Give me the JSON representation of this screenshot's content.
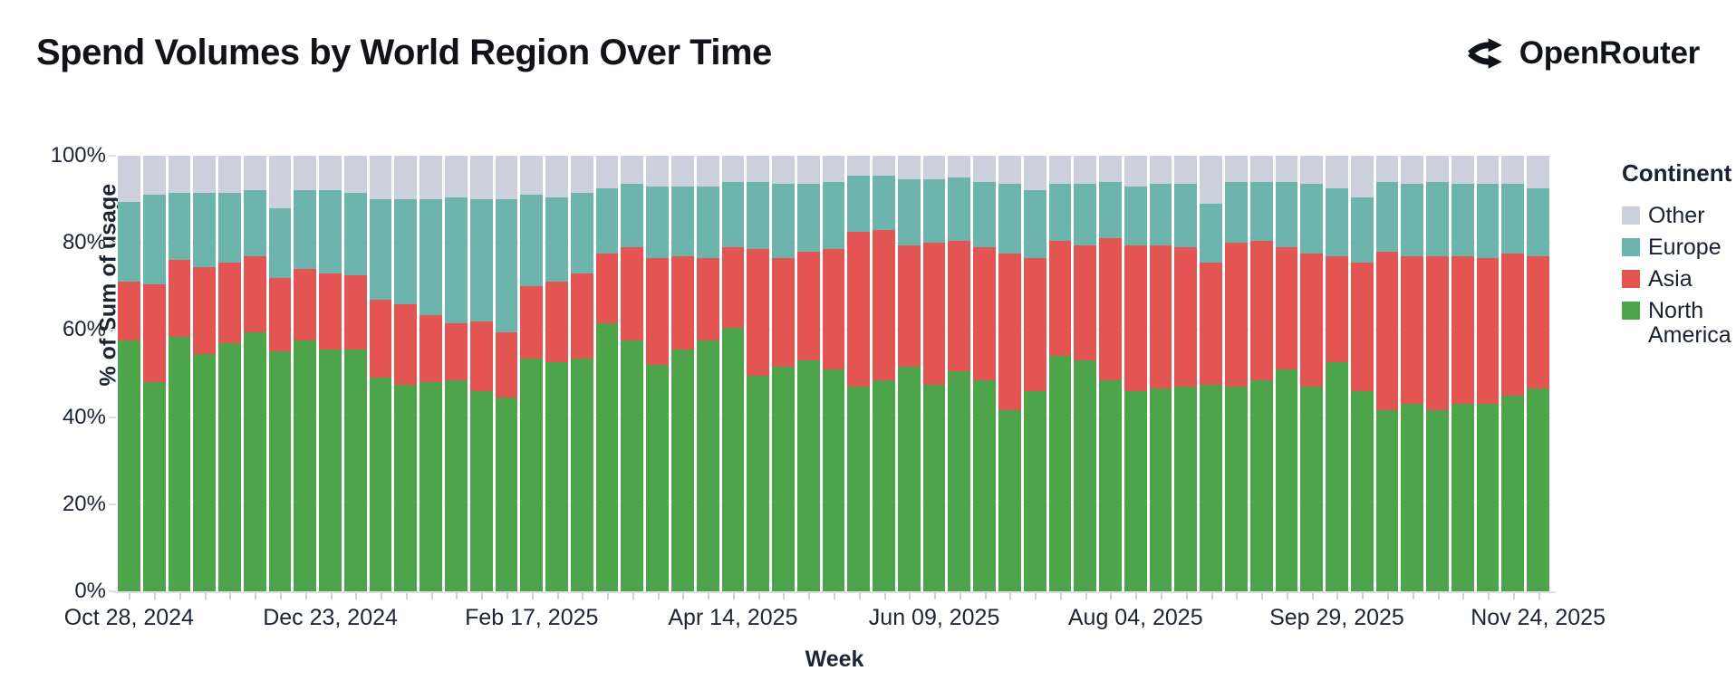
{
  "header": {
    "title": "Spend Volumes by World Region Over Time",
    "brand": "OpenRouter"
  },
  "chart_data": {
    "type": "bar",
    "stacked": true,
    "normalized_percent": true,
    "title": "Spend Volumes by World Region Over Time",
    "xlabel": "Week",
    "ylabel": "% of Sum of usage",
    "ylim": [
      0,
      100
    ],
    "y_ticks": [
      {
        "percent": 0,
        "label": "0%"
      },
      {
        "percent": 20,
        "label": "20%"
      },
      {
        "percent": 40,
        "label": "40%"
      },
      {
        "percent": 60,
        "label": "60%"
      },
      {
        "percent": 80,
        "label": "80%"
      },
      {
        "percent": 100,
        "label": "100%"
      }
    ],
    "x_label_every": 8,
    "x_tick_labels": [
      "Oct 28, 2024",
      "Dec 23, 2024",
      "Feb 17, 2025",
      "Apr 14, 2025",
      "Jun 09, 2025",
      "Aug 04, 2025",
      "Sep 29, 2025",
      "Nov 24, 2025"
    ],
    "legend": {
      "title": "Continent",
      "position": "right",
      "entries": [
        {
          "label": "Other",
          "key": "other"
        },
        {
          "label": "Europe",
          "key": "europe"
        },
        {
          "label": "Asia",
          "key": "asia"
        },
        {
          "label": "North America",
          "key": "north_america"
        }
      ]
    },
    "colors": {
      "north_america": "#4DA44B",
      "asia": "#E25552",
      "europe": "#6DB4AD",
      "other": "#CDD1DE"
    },
    "stack_order_bottom_to_top": [
      "north_america",
      "asia",
      "europe",
      "other"
    ],
    "weeks": [
      {
        "week": "Oct 28, 2024",
        "north_america": 57.5,
        "asia": 13.5,
        "europe": 18.5,
        "other": 10.5
      },
      {
        "week": "Nov 04, 2024",
        "north_america": 48.0,
        "asia": 22.5,
        "europe": 20.5,
        "other": 9.0
      },
      {
        "week": "Nov 11, 2024",
        "north_america": 58.5,
        "asia": 17.5,
        "europe": 15.5,
        "other": 8.5
      },
      {
        "week": "Nov 18, 2024",
        "north_america": 54.5,
        "asia": 20.0,
        "europe": 17.0,
        "other": 8.5
      },
      {
        "week": "Nov 25, 2024",
        "north_america": 57.0,
        "asia": 18.5,
        "europe": 16.0,
        "other": 8.5
      },
      {
        "week": "Dec 02, 2024",
        "north_america": 59.5,
        "asia": 17.5,
        "europe": 15.0,
        "other": 8.0
      },
      {
        "week": "Dec 09, 2024",
        "north_america": 55.0,
        "asia": 17.0,
        "europe": 16.0,
        "other": 12.0
      },
      {
        "week": "Dec 16, 2024",
        "north_america": 57.5,
        "asia": 16.5,
        "europe": 18.0,
        "other": 8.0
      },
      {
        "week": "Dec 23, 2024",
        "north_america": 55.5,
        "asia": 17.5,
        "europe": 19.0,
        "other": 8.0
      },
      {
        "week": "Dec 30, 2024",
        "north_america": 55.5,
        "asia": 17.0,
        "europe": 19.0,
        "other": 8.5
      },
      {
        "week": "Jan 06, 2025",
        "north_america": 49.0,
        "asia": 18.0,
        "europe": 23.0,
        "other": 10.0
      },
      {
        "week": "Jan 13, 2025",
        "north_america": 47.5,
        "asia": 18.5,
        "europe": 24.0,
        "other": 10.0
      },
      {
        "week": "Jan 20, 2025",
        "north_america": 48.0,
        "asia": 15.5,
        "europe": 26.5,
        "other": 10.0
      },
      {
        "week": "Jan 27, 2025",
        "north_america": 48.5,
        "asia": 13.0,
        "europe": 29.0,
        "other": 9.5
      },
      {
        "week": "Feb 03, 2025",
        "north_america": 46.0,
        "asia": 16.0,
        "europe": 28.0,
        "other": 10.0
      },
      {
        "week": "Feb 10, 2025",
        "north_america": 44.5,
        "asia": 15.0,
        "europe": 30.5,
        "other": 10.0
      },
      {
        "week": "Feb 17, 2025",
        "north_america": 53.5,
        "asia": 16.5,
        "europe": 21.0,
        "other": 9.0
      },
      {
        "week": "Feb 24, 2025",
        "north_america": 52.5,
        "asia": 18.5,
        "europe": 19.5,
        "other": 9.5
      },
      {
        "week": "Mar 03, 2025",
        "north_america": 53.5,
        "asia": 19.5,
        "europe": 18.5,
        "other": 8.5
      },
      {
        "week": "Mar 10, 2025",
        "north_america": 61.5,
        "asia": 16.0,
        "europe": 15.0,
        "other": 7.5
      },
      {
        "week": "Mar 17, 2025",
        "north_america": 57.5,
        "asia": 21.5,
        "europe": 14.5,
        "other": 6.5
      },
      {
        "week": "Mar 24, 2025",
        "north_america": 52.0,
        "asia": 24.5,
        "europe": 16.5,
        "other": 7.0
      },
      {
        "week": "Mar 31, 2025",
        "north_america": 55.5,
        "asia": 21.5,
        "europe": 16.0,
        "other": 7.0
      },
      {
        "week": "Apr 07, 2025",
        "north_america": 57.5,
        "asia": 19.0,
        "europe": 16.5,
        "other": 7.0
      },
      {
        "week": "Apr 14, 2025",
        "north_america": 60.5,
        "asia": 18.5,
        "europe": 15.0,
        "other": 6.0
      },
      {
        "week": "Apr 21, 2025",
        "north_america": 49.5,
        "asia": 29.0,
        "europe": 15.5,
        "other": 6.0
      },
      {
        "week": "Apr 28, 2025",
        "north_america": 51.5,
        "asia": 25.0,
        "europe": 17.0,
        "other": 6.5
      },
      {
        "week": "May 05, 2025",
        "north_america": 53.0,
        "asia": 25.0,
        "europe": 15.5,
        "other": 6.5
      },
      {
        "week": "May 12, 2025",
        "north_america": 51.0,
        "asia": 27.5,
        "europe": 15.5,
        "other": 6.0
      },
      {
        "week": "May 19, 2025",
        "north_america": 47.0,
        "asia": 35.5,
        "europe": 13.0,
        "other": 4.5
      },
      {
        "week": "May 26, 2025",
        "north_america": 48.5,
        "asia": 34.5,
        "europe": 12.5,
        "other": 4.5
      },
      {
        "week": "Jun 02, 2025",
        "north_america": 51.5,
        "asia": 28.0,
        "europe": 15.0,
        "other": 5.5
      },
      {
        "week": "Jun 09, 2025",
        "north_america": 47.5,
        "asia": 32.5,
        "europe": 14.5,
        "other": 5.5
      },
      {
        "week": "Jun 16, 2025",
        "north_america": 50.5,
        "asia": 30.0,
        "europe": 14.5,
        "other": 5.0
      },
      {
        "week": "Jun 23, 2025",
        "north_america": 48.5,
        "asia": 30.5,
        "europe": 15.0,
        "other": 6.0
      },
      {
        "week": "Jun 30, 2025",
        "north_america": 41.5,
        "asia": 36.0,
        "europe": 16.0,
        "other": 6.5
      },
      {
        "week": "Jul 07, 2025",
        "north_america": 46.0,
        "asia": 30.5,
        "europe": 15.5,
        "other": 8.0
      },
      {
        "week": "Jul 14, 2025",
        "north_america": 54.0,
        "asia": 26.5,
        "europe": 13.0,
        "other": 6.5
      },
      {
        "week": "Jul 21, 2025",
        "north_america": 53.0,
        "asia": 26.5,
        "europe": 14.0,
        "other": 6.5
      },
      {
        "week": "Jul 28, 2025",
        "north_america": 48.5,
        "asia": 32.5,
        "europe": 13.0,
        "other": 6.0
      },
      {
        "week": "Aug 04, 2025",
        "north_america": 46.0,
        "asia": 33.5,
        "europe": 13.5,
        "other": 7.0
      },
      {
        "week": "Aug 11, 2025",
        "north_america": 46.5,
        "asia": 33.0,
        "europe": 14.0,
        "other": 6.5
      },
      {
        "week": "Aug 18, 2025",
        "north_america": 47.0,
        "asia": 32.0,
        "europe": 14.5,
        "other": 6.5
      },
      {
        "week": "Aug 25, 2025",
        "north_america": 47.5,
        "asia": 28.0,
        "europe": 13.5,
        "other": 11.0
      },
      {
        "week": "Sep 01, 2025",
        "north_america": 47.0,
        "asia": 33.0,
        "europe": 14.0,
        "other": 6.0
      },
      {
        "week": "Sep 08, 2025",
        "north_america": 48.5,
        "asia": 32.0,
        "europe": 13.5,
        "other": 6.0
      },
      {
        "week": "Sep 15, 2025",
        "north_america": 51.0,
        "asia": 28.0,
        "europe": 15.0,
        "other": 6.0
      },
      {
        "week": "Sep 22, 2025",
        "north_america": 47.0,
        "asia": 30.5,
        "europe": 16.0,
        "other": 6.5
      },
      {
        "week": "Sep 29, 2025",
        "north_america": 52.5,
        "asia": 24.5,
        "europe": 15.5,
        "other": 7.5
      },
      {
        "week": "Oct 06, 2025",
        "north_america": 46.0,
        "asia": 29.5,
        "europe": 15.0,
        "other": 9.5
      },
      {
        "week": "Oct 13, 2025",
        "north_america": 41.5,
        "asia": 36.5,
        "europe": 16.0,
        "other": 6.0
      },
      {
        "week": "Oct 20, 2025",
        "north_america": 43.0,
        "asia": 34.0,
        "europe": 16.5,
        "other": 6.5
      },
      {
        "week": "Oct 27, 2025",
        "north_america": 41.5,
        "asia": 35.5,
        "europe": 17.0,
        "other": 6.0
      },
      {
        "week": "Nov 03, 2025",
        "north_america": 43.0,
        "asia": 34.0,
        "europe": 16.5,
        "other": 6.5
      },
      {
        "week": "Nov 10, 2025",
        "north_america": 43.0,
        "asia": 33.5,
        "europe": 17.0,
        "other": 6.5
      },
      {
        "week": "Nov 17, 2025",
        "north_america": 45.0,
        "asia": 32.5,
        "europe": 16.0,
        "other": 6.5
      },
      {
        "week": "Nov 24, 2025",
        "north_america": 46.5,
        "asia": 30.5,
        "europe": 15.5,
        "other": 7.5
      }
    ]
  }
}
